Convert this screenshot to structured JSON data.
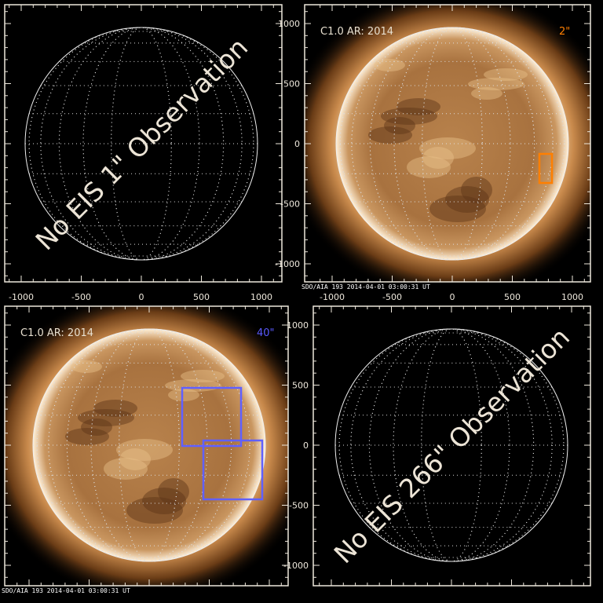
{
  "panels": [
    {
      "id": "tl",
      "has_image": false,
      "overlay_text": "No EIS 1\" Observation",
      "x_ticks": [
        "-1000",
        "-500",
        "0",
        "500",
        "1000"
      ],
      "y_ticks": [
        "1000",
        "500",
        "0",
        "-500",
        "-1000"
      ],
      "show_x_labels": true,
      "show_y_labels": false
    },
    {
      "id": "tr",
      "has_image": true,
      "label": "C1.0 AR: 2014",
      "size_label": "2\"",
      "size_color": "#ff7f00",
      "stamp": "SDO/AIA 193   2014-04-01 03:00:31 UT",
      "x_ticks": [
        "-1000",
        "-500",
        "0",
        "500",
        "1000"
      ],
      "y_ticks": [
        "1000",
        "500",
        "0",
        "-500",
        "-1000"
      ],
      "show_x_labels": true,
      "show_y_labels": true,
      "boxes_color": "#ff7f00"
    },
    {
      "id": "bl",
      "has_image": true,
      "label": "C1.0 AR: 2014",
      "size_label": "40\"",
      "size_color": "#5a5aff",
      "stamp": "SDO/AIA 193   2014-04-01 03:00:31 UT",
      "x_ticks": [],
      "y_ticks": [],
      "show_x_labels": false,
      "show_y_labels": false,
      "boxes_color": "#6060ff"
    },
    {
      "id": "br",
      "has_image": false,
      "overlay_text": "No EIS 266\" Observation",
      "x_ticks": [],
      "y_ticks": [
        "1000",
        "500",
        "0",
        "-500",
        "-1000"
      ],
      "show_x_labels": false,
      "show_y_labels": true
    }
  ],
  "colors": {
    "frame": "#eee8dc",
    "sun_core": "#d9a066",
    "sun_limb": "#fff3dc",
    "corona": "#7a4a1e"
  }
}
